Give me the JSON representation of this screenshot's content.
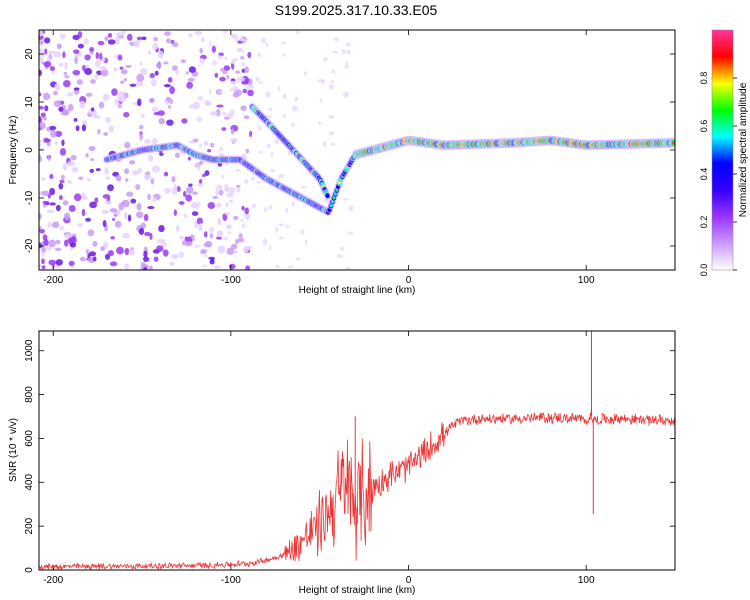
{
  "title": "S199.2025.317.10.33.E05",
  "chart_data": [
    {
      "type": "heatmap",
      "name": "spectrogram",
      "xlabel": "Height of straight line (km)",
      "ylabel": "Frequency (Hz)",
      "xlim": [
        -208,
        150
      ],
      "ylim": [
        -25,
        25
      ],
      "xticks": [
        -200,
        -100,
        0,
        100
      ],
      "yticks": [
        -20,
        -10,
        0,
        10,
        20
      ],
      "colorbar": {
        "label": "Normalized spectral amplitude",
        "range": [
          0,
          1
        ],
        "ticks": [
          "0.0",
          "0.2",
          "0.4",
          "0.6",
          "0.8"
        ],
        "tick_values": [
          0.0,
          0.2,
          0.4,
          0.6,
          0.8
        ],
        "colors": [
          "#ffffff",
          "#cc99ff",
          "#9933ff",
          "#3300ff",
          "#0000ff",
          "#00ffff",
          "#00ff00",
          "#ffff00",
          "#ff0000",
          "#ff3399"
        ]
      },
      "ridges": [
        {
          "name": "main-ridge",
          "points": [
            [
              -170,
              -2
            ],
            [
              -150,
              0
            ],
            [
              -130,
              1
            ],
            [
              -120,
              -1
            ],
            [
              -110,
              -2
            ],
            [
              -95,
              -2
            ],
            [
              -80,
              -6
            ],
            [
              -60,
              -10
            ],
            [
              -45,
              -13
            ],
            [
              -38,
              -6
            ],
            [
              -30,
              -1
            ],
            [
              -20,
              0
            ],
            [
              -10,
              1
            ],
            [
              0,
              2
            ],
            [
              20,
              1
            ],
            [
              60,
              1.5
            ],
            [
              80,
              2
            ],
            [
              100,
              1
            ],
            [
              150,
              1.5
            ]
          ]
        },
        {
          "name": "upper-ridge",
          "points": [
            [
              -88,
              9
            ],
            [
              -80,
              6
            ],
            [
              -70,
              2
            ],
            [
              -60,
              -2
            ],
            [
              -50,
              -6
            ],
            [
              -45,
              -10
            ]
          ]
        }
      ]
    },
    {
      "type": "line",
      "name": "snr",
      "xlabel": "Height of straight line (km)",
      "ylabel": "SNR (10 * v/v)",
      "xlim": [
        -208,
        150
      ],
      "ylim": [
        0,
        1090
      ],
      "xticks": [
        -200,
        -100,
        0,
        100
      ],
      "yticks": [
        0,
        200,
        400,
        600,
        800,
        1000
      ],
      "color": "#ee3333",
      "series": [
        {
          "name": "SNR",
          "x": [
            -208,
            -150,
            -120,
            -100,
            -90,
            -80,
            -70,
            -60,
            -50,
            -45,
            -40,
            -35,
            -30,
            -20,
            -10,
            0,
            10,
            20,
            25,
            30,
            40,
            60,
            80,
            95,
            100,
            103,
            105,
            110,
            120,
            150
          ],
          "y": [
            15,
            18,
            20,
            25,
            30,
            45,
            70,
            130,
            210,
            260,
            330,
            380,
            300,
            380,
            430,
            470,
            540,
            620,
            660,
            680,
            690,
            690,
            695,
            690,
            680,
            700,
            680,
            690,
            690,
            680
          ]
        }
      ],
      "spikes": [
        {
          "x": -30,
          "y": 700
        },
        {
          "x": 103,
          "y": 1090
        },
        {
          "x": 104,
          "y": 255
        }
      ]
    }
  ]
}
